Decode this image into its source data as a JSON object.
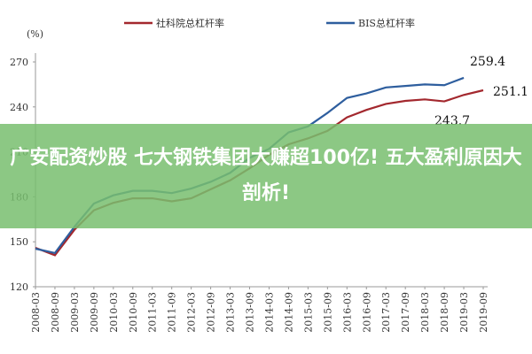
{
  "chart_data": {
    "type": "line",
    "unit_label": "(%)",
    "categories": [
      "2008-03",
      "2008-09",
      "2009-03",
      "2009-09",
      "2010-03",
      "2010-09",
      "2011-03",
      "2011-09",
      "2012-03",
      "2012-09",
      "2013-03",
      "2013-09",
      "2014-03",
      "2014-09",
      "2015-03",
      "2015-09",
      "2016-03",
      "2016-09",
      "2017-03",
      "2017-09",
      "2018-03",
      "2018-09",
      "2019-03",
      "2019-09"
    ],
    "series": [
      {
        "name": "社科院总杠杆率",
        "color": "#a3282e",
        "values": [
          146,
          141,
          158,
          171,
          176,
          179,
          179,
          177,
          179,
          185,
          191,
          199,
          208,
          215,
          219,
          224,
          233,
          238,
          242,
          244,
          245,
          243.7,
          248,
          251.1
        ]
      },
      {
        "name": "BIS总杠杆率",
        "color": "#2e5e9e",
        "values": [
          145.4,
          142.5,
          160,
          175.5,
          181,
          184,
          184,
          182.5,
          185.5,
          190,
          196,
          206,
          212,
          223,
          227,
          236,
          246,
          249,
          253,
          254,
          255,
          254.5,
          259.4,
          null
        ]
      }
    ],
    "annotations": [
      "259.4",
      "251.1",
      "243.7"
    ],
    "ylim": [
      120,
      270
    ],
    "yticks": [
      120,
      150,
      180,
      210,
      240,
      270
    ],
    "grid": false,
    "banner": "广安配资炒股 七大钢铁集团大赚超100亿! 五大盈利原因大剖析!"
  }
}
